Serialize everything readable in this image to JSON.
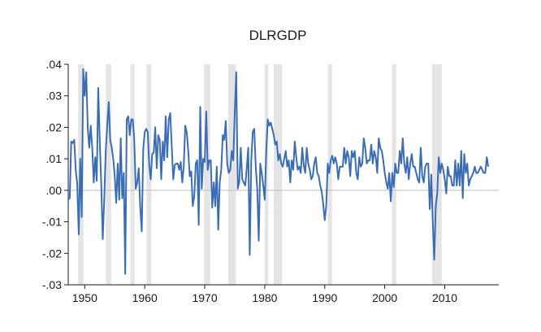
{
  "chart_data": {
    "type": "line",
    "title": "DLRGDP",
    "xlabel": "",
    "ylabel": "",
    "xlim": [
      1947.25,
      2019.0
    ],
    "ylim": [
      -0.03,
      0.04
    ],
    "y_ticks": [
      {
        "value": 0.04,
        "label": ".04"
      },
      {
        "value": 0.03,
        "label": ".03"
      },
      {
        "value": 0.02,
        "label": ".02"
      },
      {
        "value": 0.01,
        "label": ".01"
      },
      {
        "value": 0.0,
        "label": ".00"
      },
      {
        "value": -0.01,
        "label": "-.01"
      },
      {
        "value": -0.02,
        "label": "-.02"
      },
      {
        "value": -0.03,
        "label": "-.03"
      }
    ],
    "x_ticks": [
      {
        "value": 1950,
        "label": "1950"
      },
      {
        "value": 1960,
        "label": "1960"
      },
      {
        "value": 1970,
        "label": "1970"
      },
      {
        "value": 1980,
        "label": "1980"
      },
      {
        "value": 1990,
        "label": "1990"
      },
      {
        "value": 2000,
        "label": "2000"
      },
      {
        "value": 2010,
        "label": "2010"
      }
    ],
    "grid": false,
    "legend": "none",
    "line_color": "#3a6db5",
    "shading_color": "#e4e4e4",
    "shaded_periods": [
      [
        1948.9,
        1949.8
      ],
      [
        1953.5,
        1954.4
      ],
      [
        1957.6,
        1958.3
      ],
      [
        1960.3,
        1961.1
      ],
      [
        1969.9,
        1970.9
      ],
      [
        1973.9,
        1975.2
      ],
      [
        1980.0,
        1980.6
      ],
      [
        1981.5,
        1982.9
      ],
      [
        1990.5,
        1991.2
      ],
      [
        2001.2,
        2001.9
      ],
      [
        2007.9,
        2009.5
      ]
    ],
    "series": [
      {
        "x_start": 1947.25,
        "step": 0.25,
        "values": [
          -0.003,
          -0.0025,
          0.0155,
          0.015,
          0.016,
          0.0065,
          0.002,
          -0.014,
          0.01,
          -0.0085,
          0.0385,
          0.03,
          0.0375,
          0.02,
          0.0135,
          0.0205,
          0.0135,
          0.0025,
          0.0105,
          0.003,
          0.0325,
          0.016,
          0.002,
          -0.0155,
          -0.003,
          0.0125,
          0.0205,
          0.028,
          0.016,
          0.0135,
          0.01,
          0.0045,
          -0.004,
          0.0085,
          -0.003,
          0.0165,
          -0.0025,
          0.0055,
          -0.0265,
          0.0225,
          0.0235,
          0.0175,
          0.0225,
          0.0225,
          0.0165,
          0.0005,
          0.0025,
          0.007,
          -0.0055,
          -0.013,
          0.013,
          0.0185,
          0.0195,
          0.0185,
          0.008,
          0.0035,
          0.0115,
          0.012,
          0.02,
          0.007,
          0.0175,
          0.016,
          0.0035,
          0.0155,
          0.0095,
          0.0235,
          0.0105,
          0.0225,
          0.0245,
          0.014,
          0.0035,
          0.008,
          0.0085,
          0.0085,
          0.0065,
          0.009,
          0.0025,
          0.0075,
          0.0205,
          0.0185,
          0.0125,
          0.0045,
          0.006,
          -0.005,
          -0.002,
          0.0085,
          0.0095,
          -0.011,
          0.0265,
          0.0005,
          0.01,
          0.009,
          0.025,
          0.0065,
          0.0095,
          0.0095,
          -0.0055,
          0.0025,
          -0.005,
          0.0075,
          -0.0125,
          0.0025,
          0.0065,
          0.0175,
          0.016,
          0.022,
          0.0085,
          0.0055,
          0.0065,
          0.0125,
          0.0095,
          0.0245,
          0.0375,
          0.0005,
          0.0025,
          0.0135,
          0.0035,
          0.0025,
          0.0015,
          0.007,
          0.0135,
          -0.0205,
          0.0095,
          0.0185,
          0.0195,
          0.0075,
          0.0005,
          -0.016,
          0.0085,
          0.0055,
          0.0015,
          -0.003,
          0.0125,
          0.0225,
          0.0205,
          0.0215,
          0.0195,
          0.0175,
          0.0145,
          0.0155,
          0.0095,
          0.0115,
          0.0085,
          0.0075,
          0.01,
          0.0125,
          0.0075,
          0.0095,
          0.0025,
          0.0095,
          0.0065,
          0.0155,
          0.0105,
          0.0065,
          0.0075,
          0.0055,
          0.0135,
          0.008,
          0.0055,
          0.0135,
          0.0085,
          0.0065,
          0.0035,
          0.0045,
          0.0085,
          0.0105,
          0.0055,
          0.0045,
          0.0015,
          -0.0005,
          -0.0045,
          -0.0095,
          -0.005,
          0.0085,
          0.0055,
          0.0095,
          0.011,
          0.0085,
          0.0105,
          0.0085,
          0.0035,
          0.0075,
          0.0075,
          0.0075,
          0.0135,
          0.0085,
          0.0125,
          0.0105,
          0.0045,
          0.0125,
          0.0105,
          0.0125,
          0.0055,
          0.0035,
          0.0105,
          0.0075,
          0.0085,
          0.0165,
          0.0135,
          0.0085,
          0.0095,
          0.0095,
          0.0145,
          0.0085,
          0.0125,
          0.0105,
          0.0055,
          0.0165,
          0.0135,
          0.0125,
          0.0095,
          0.0055,
          0.0025,
          0.0005,
          0.0055,
          -0.0035,
          0.0055,
          0.001,
          0.0085,
          0.0055,
          0.0055,
          0.0125,
          0.0085,
          0.0165,
          0.0085,
          0.0055,
          0.0105,
          0.0035,
          0.0085,
          0.0115,
          0.0075,
          0.0075,
          0.0055,
          0.0035,
          0.0025,
          0.0135,
          0.0045,
          0.0025,
          0.0075,
          0.0085,
          0.0085,
          -0.006,
          0.005,
          -0.01,
          -0.022,
          -0.005,
          -0.001,
          0.0105,
          0.0055,
          0.0085,
          0.0065,
          0.0035,
          -0.001,
          0.0075,
          0.0045,
          0.0045,
          0.0015,
          0.0015,
          0.0095,
          0.0015,
          0.0085,
          0.0015,
          0.0125,
          -0.0025,
          0.0115,
          0.0055,
          0.0085,
          0.0015,
          0.0035,
          0.0045,
          0.0055,
          0.0075,
          0.0055,
          0.0055,
          0.0065,
          0.0075,
          0.0065,
          0.0055,
          0.0055,
          0.0105,
          0.0075
        ]
      }
    ]
  }
}
